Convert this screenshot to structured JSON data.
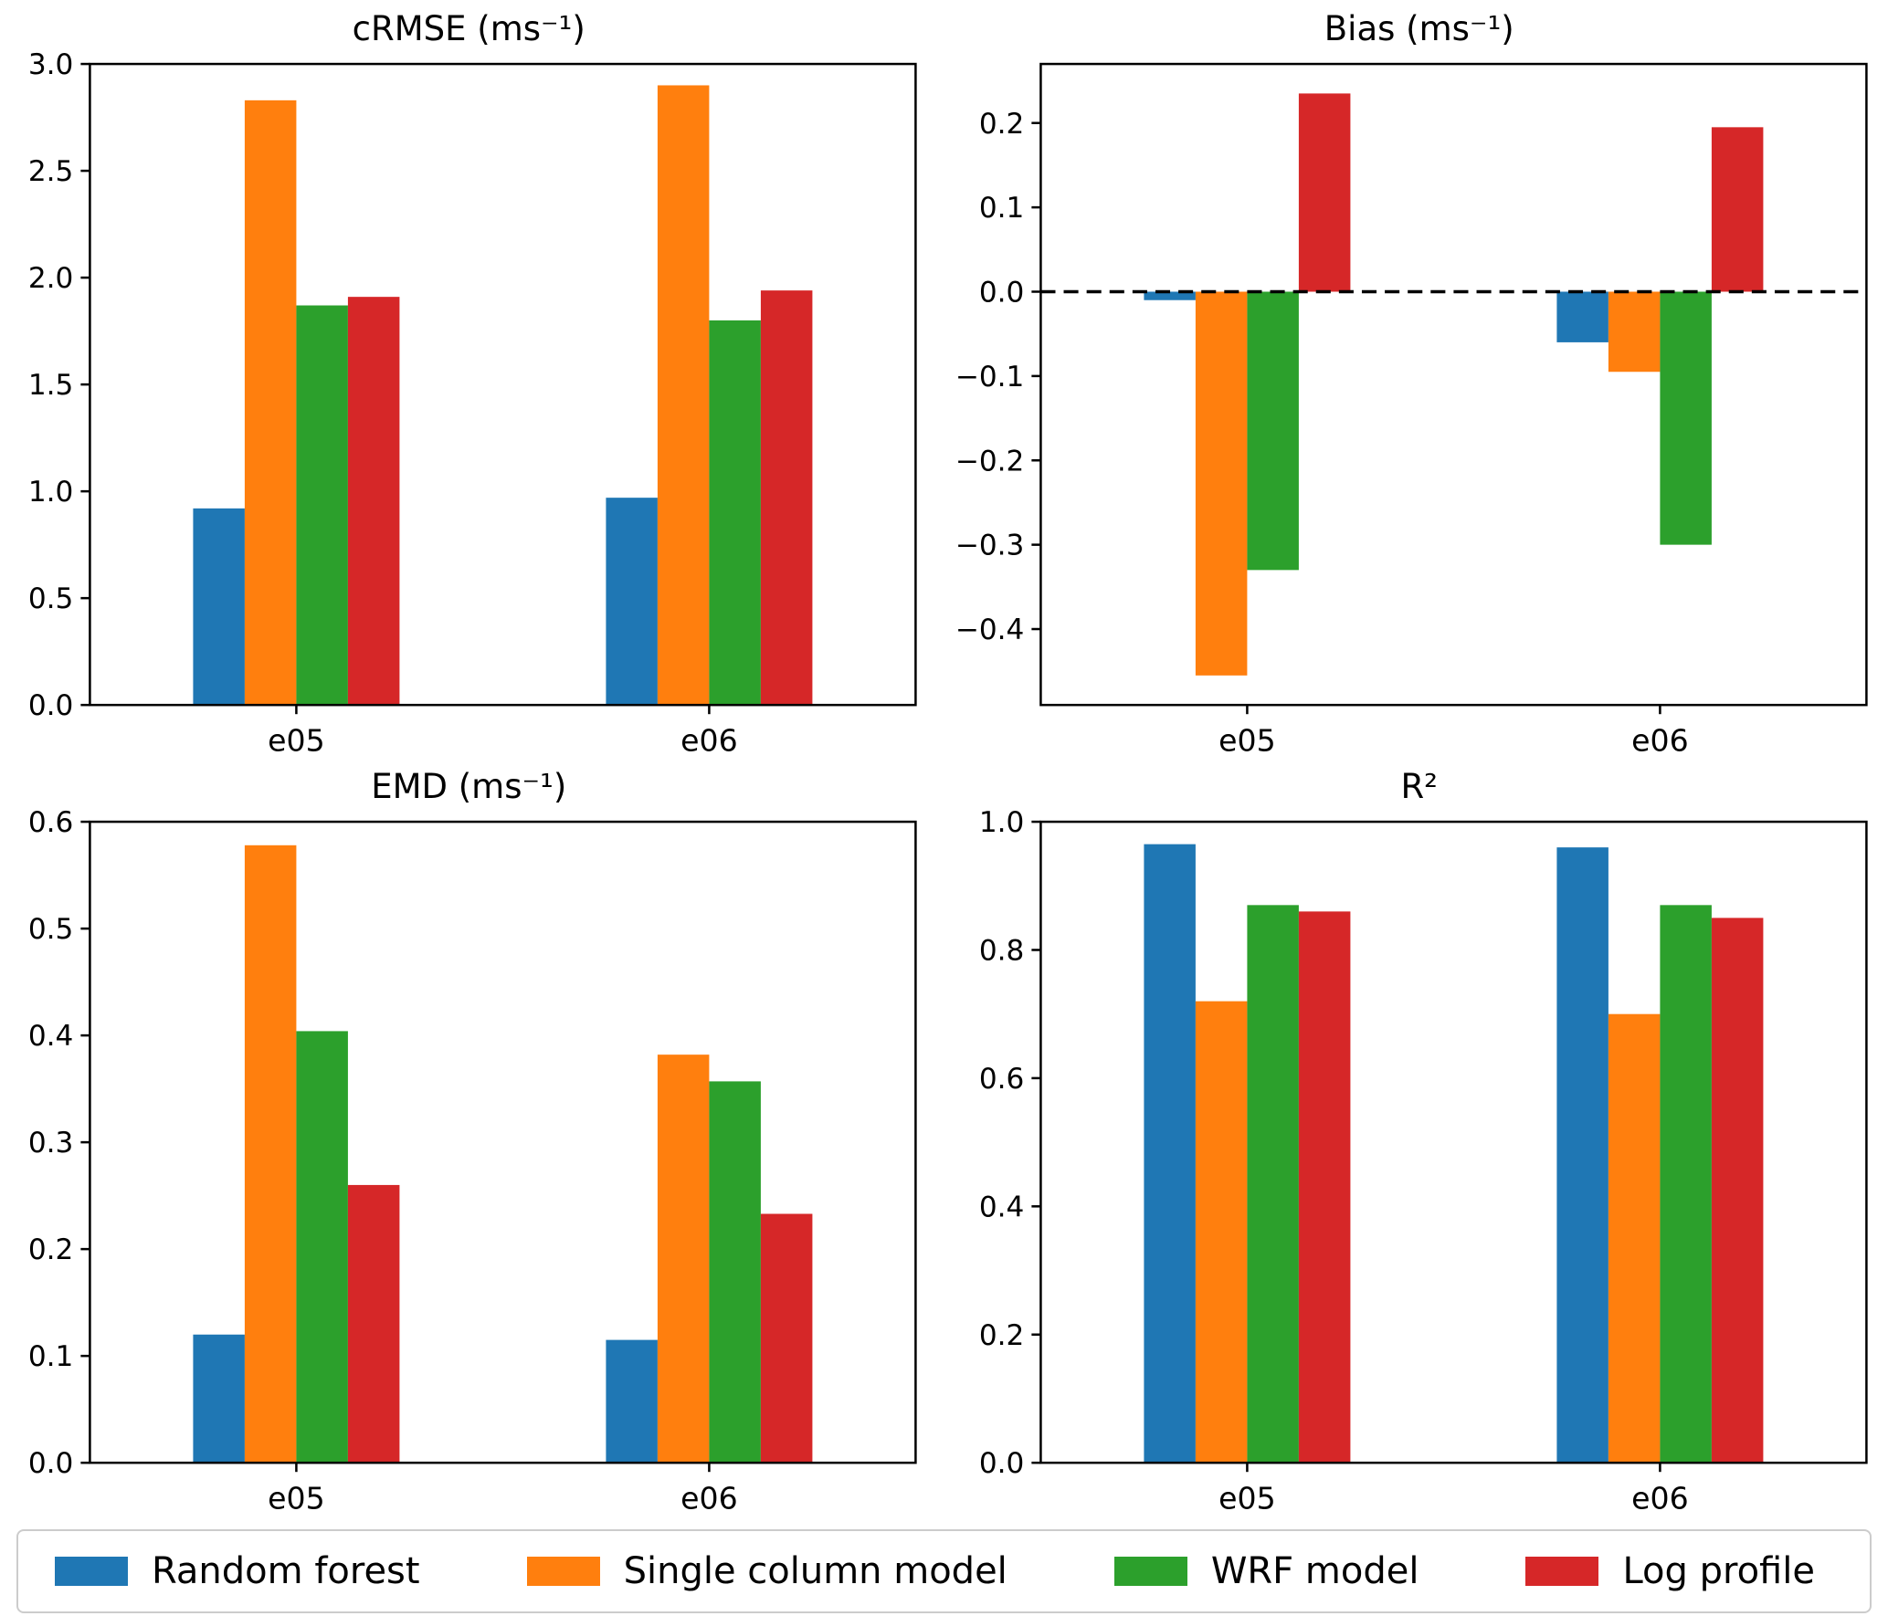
{
  "legend": [
    {
      "label": "Random forest",
      "color": "#1f77b4"
    },
    {
      "label": "Single column model",
      "color": "#ff7f0e"
    },
    {
      "label": "WRF model",
      "color": "#2ca02c"
    },
    {
      "label": "Log profile",
      "color": "#d62728"
    }
  ],
  "colors": {
    "random_forest": "#1f77b4",
    "single_column_model": "#ff7f0e",
    "wrf_model": "#2ca02c",
    "log_profile": "#d62728",
    "axis": "#000000",
    "legend_border": "#cccccc"
  },
  "chart_data": [
    {
      "type": "bar",
      "title": "cRMSE (ms⁻¹)",
      "categories": [
        "e05",
        "e06"
      ],
      "series": [
        {
          "name": "Random forest",
          "color": "#1f77b4",
          "values": [
            0.92,
            0.97
          ]
        },
        {
          "name": "Single column model",
          "color": "#ff7f0e",
          "values": [
            2.83,
            2.9
          ]
        },
        {
          "name": "WRF model",
          "color": "#2ca02c",
          "values": [
            1.87,
            1.8
          ]
        },
        {
          "name": "Log profile",
          "color": "#d62728",
          "values": [
            1.91,
            1.94
          ]
        }
      ],
      "ylim": [
        0,
        3.0
      ],
      "yticks": [
        0.0,
        0.5,
        1.0,
        1.5,
        2.0,
        2.5,
        3.0
      ],
      "ytick_labels": [
        "0.0",
        "0.5",
        "1.0",
        "1.5",
        "2.0",
        "2.5",
        "3.0"
      ],
      "zero_line": false,
      "grid": false,
      "xlabel": "",
      "ylabel": ""
    },
    {
      "type": "bar",
      "title": "Bias (ms⁻¹)",
      "categories": [
        "e05",
        "e06"
      ],
      "series": [
        {
          "name": "Random forest",
          "color": "#1f77b4",
          "values": [
            -0.01,
            -0.06
          ]
        },
        {
          "name": "Single column model",
          "color": "#ff7f0e",
          "values": [
            -0.455,
            -0.095
          ]
        },
        {
          "name": "WRF model",
          "color": "#2ca02c",
          "values": [
            -0.33,
            -0.3
          ]
        },
        {
          "name": "Log profile",
          "color": "#d62728",
          "values": [
            0.235,
            0.195
          ]
        }
      ],
      "ylim": [
        -0.49,
        0.27
      ],
      "yticks": [
        0.2,
        0.1,
        0.0,
        -0.1,
        -0.2,
        -0.3,
        -0.4
      ],
      "ytick_labels": [
        "0.2",
        "0.1",
        "0.0",
        "−0.1",
        "−0.2",
        "−0.3",
        "−0.4"
      ],
      "zero_line": true,
      "grid": false,
      "xlabel": "",
      "ylabel": ""
    },
    {
      "type": "bar",
      "title": "EMD (ms⁻¹)",
      "categories": [
        "e05",
        "e06"
      ],
      "series": [
        {
          "name": "Random forest",
          "color": "#1f77b4",
          "values": [
            0.12,
            0.115
          ]
        },
        {
          "name": "Single column model",
          "color": "#ff7f0e",
          "values": [
            0.578,
            0.382
          ]
        },
        {
          "name": "WRF model",
          "color": "#2ca02c",
          "values": [
            0.404,
            0.357
          ]
        },
        {
          "name": "Log profile",
          "color": "#d62728",
          "values": [
            0.26,
            0.233
          ]
        }
      ],
      "ylim": [
        0,
        0.6
      ],
      "yticks": [
        0.0,
        0.1,
        0.2,
        0.3,
        0.4,
        0.5,
        0.6
      ],
      "ytick_labels": [
        "0.0",
        "0.1",
        "0.2",
        "0.3",
        "0.4",
        "0.5",
        "0.6"
      ],
      "zero_line": false,
      "grid": false,
      "xlabel": "",
      "ylabel": ""
    },
    {
      "type": "bar",
      "title": "R²",
      "categories": [
        "e05",
        "e06"
      ],
      "series": [
        {
          "name": "Random forest",
          "color": "#1f77b4",
          "values": [
            0.965,
            0.96
          ]
        },
        {
          "name": "Single column model",
          "color": "#ff7f0e",
          "values": [
            0.72,
            0.7
          ]
        },
        {
          "name": "WRF model",
          "color": "#2ca02c",
          "values": [
            0.87,
            0.87
          ]
        },
        {
          "name": "Log profile",
          "color": "#d62728",
          "values": [
            0.86,
            0.85
          ]
        }
      ],
      "ylim": [
        0,
        1.0
      ],
      "yticks": [
        0.0,
        0.2,
        0.4,
        0.6,
        0.8,
        1.0
      ],
      "ytick_labels": [
        "0.0",
        "0.2",
        "0.4",
        "0.6",
        "0.8",
        "1.0"
      ],
      "zero_line": false,
      "grid": false,
      "xlabel": "",
      "ylabel": ""
    }
  ]
}
